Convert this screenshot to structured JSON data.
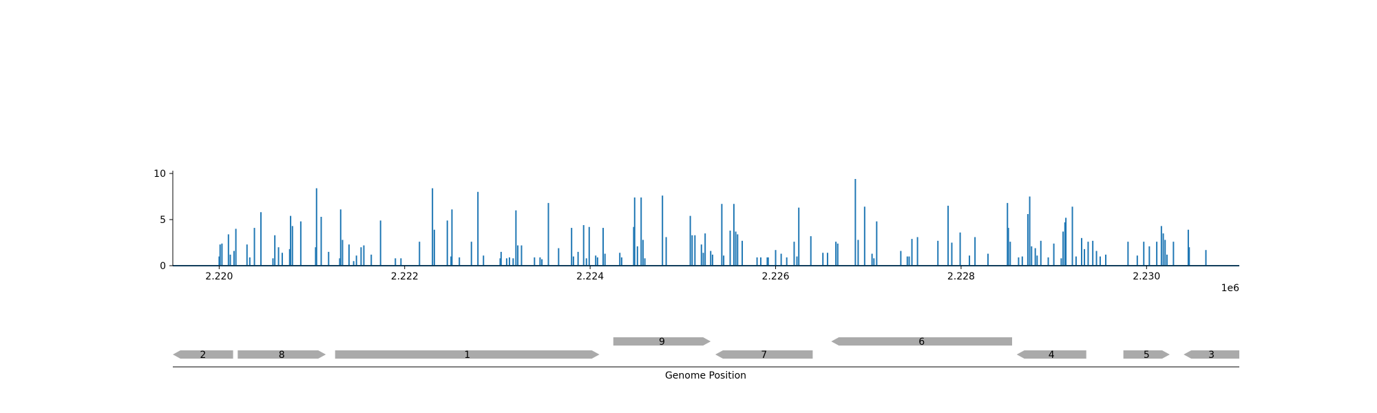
{
  "chart_data": [
    {
      "type": "bar",
      "subtype": "coverage-track",
      "x_multiplier_label": "1e6",
      "xlim": [
        2219500,
        2231000
      ],
      "ylim": [
        0,
        10
      ],
      "x_ticks": [
        2220000,
        2222000,
        2224000,
        2226000,
        2228000,
        2230000
      ],
      "x_tick_labels": [
        "2.220",
        "2.222",
        "2.224",
        "2.226",
        "2.228",
        "2.230"
      ],
      "y_ticks": [
        0,
        5,
        10
      ],
      "y_tick_labels": [
        "0",
        "5",
        "10"
      ],
      "color": "#1f77b4",
      "grid": false,
      "points": [
        [
          2220000,
          1.0
        ],
        [
          2220010,
          2.3
        ],
        [
          2220030,
          2.4
        ],
        [
          2220100,
          3.4
        ],
        [
          2220120,
          1.2
        ],
        [
          2220160,
          1.6
        ],
        [
          2220180,
          4.0
        ],
        [
          2220300,
          2.3
        ],
        [
          2220330,
          0.9
        ],
        [
          2220380,
          4.1
        ],
        [
          2220450,
          5.8
        ],
        [
          2220580,
          0.8
        ],
        [
          2220600,
          3.3
        ],
        [
          2220640,
          2.0
        ],
        [
          2220680,
          1.4
        ],
        [
          2220760,
          1.8
        ],
        [
          2220770,
          5.4
        ],
        [
          2220790,
          4.3
        ],
        [
          2220880,
          4.8
        ],
        [
          2221040,
          2.0
        ],
        [
          2221050,
          8.4
        ],
        [
          2221100,
          5.3
        ],
        [
          2221180,
          1.5
        ],
        [
          2221300,
          0.8
        ],
        [
          2221310,
          6.1
        ],
        [
          2221330,
          2.8
        ],
        [
          2221400,
          2.3
        ],
        [
          2221450,
          0.5
        ],
        [
          2221480,
          1.1
        ],
        [
          2221530,
          2.0
        ],
        [
          2221560,
          2.2
        ],
        [
          2221640,
          1.2
        ],
        [
          2221740,
          4.9
        ],
        [
          2221900,
          0.8
        ],
        [
          2221960,
          0.8
        ],
        [
          2222160,
          2.6
        ],
        [
          2222300,
          8.4
        ],
        [
          2222320,
          3.9
        ],
        [
          2222460,
          4.9
        ],
        [
          2222500,
          1.0
        ],
        [
          2222510,
          6.1
        ],
        [
          2222590,
          0.9
        ],
        [
          2222720,
          2.6
        ],
        [
          2222790,
          8.0
        ],
        [
          2222850,
          1.1
        ],
        [
          2223030,
          0.8
        ],
        [
          2223040,
          1.5
        ],
        [
          2223100,
          0.8
        ],
        [
          2223130,
          0.9
        ],
        [
          2223170,
          0.8
        ],
        [
          2223200,
          6.0
        ],
        [
          2223220,
          2.2
        ],
        [
          2223260,
          2.2
        ],
        [
          2223400,
          0.9
        ],
        [
          2223460,
          0.9
        ],
        [
          2223480,
          0.7
        ],
        [
          2223550,
          6.8
        ],
        [
          2223660,
          1.9
        ],
        [
          2223800,
          4.1
        ],
        [
          2223820,
          1.0
        ],
        [
          2223870,
          1.5
        ],
        [
          2223930,
          4.4
        ],
        [
          2223960,
          0.8
        ],
        [
          2223990,
          4.2
        ],
        [
          2224060,
          1.1
        ],
        [
          2224080,
          0.9
        ],
        [
          2224140,
          4.1
        ],
        [
          2224160,
          1.3
        ],
        [
          2224320,
          1.4
        ],
        [
          2224340,
          0.9
        ],
        [
          2224470,
          4.2
        ],
        [
          2224480,
          7.4
        ],
        [
          2224510,
          2.1
        ],
        [
          2224550,
          7.4
        ],
        [
          2224570,
          2.8
        ],
        [
          2224590,
          0.8
        ],
        [
          2224780,
          7.6
        ],
        [
          2224820,
          3.1
        ],
        [
          2225080,
          5.4
        ],
        [
          2225100,
          3.3
        ],
        [
          2225130,
          3.3
        ],
        [
          2225200,
          2.3
        ],
        [
          2225220,
          1.4
        ],
        [
          2225240,
          3.5
        ],
        [
          2225300,
          1.6
        ],
        [
          2225320,
          1.2
        ],
        [
          2225420,
          6.7
        ],
        [
          2225440,
          1.1
        ],
        [
          2225510,
          3.8
        ],
        [
          2225550,
          6.7
        ],
        [
          2225570,
          3.7
        ],
        [
          2225590,
          3.4
        ],
        [
          2225640,
          2.7
        ],
        [
          2225800,
          0.9
        ],
        [
          2225840,
          0.9
        ],
        [
          2225910,
          0.9
        ],
        [
          2225920,
          0.9
        ],
        [
          2226000,
          1.7
        ],
        [
          2226060,
          1.3
        ],
        [
          2226120,
          0.9
        ],
        [
          2226200,
          2.6
        ],
        [
          2226230,
          1.0
        ],
        [
          2226250,
          6.3
        ],
        [
          2226380,
          3.2
        ],
        [
          2226510,
          1.4
        ],
        [
          2226560,
          1.4
        ],
        [
          2226650,
          2.6
        ],
        [
          2226670,
          2.4
        ],
        [
          2226860,
          9.4
        ],
        [
          2226890,
          2.8
        ],
        [
          2226960,
          6.4
        ],
        [
          2227040,
          1.3
        ],
        [
          2227060,
          0.8
        ],
        [
          2227090,
          4.8
        ],
        [
          2227350,
          1.6
        ],
        [
          2227420,
          1.0
        ],
        [
          2227440,
          1.0
        ],
        [
          2227470,
          2.9
        ],
        [
          2227530,
          3.1
        ],
        [
          2227750,
          2.7
        ],
        [
          2227860,
          6.5
        ],
        [
          2227900,
          2.5
        ],
        [
          2227990,
          3.6
        ],
        [
          2228090,
          1.1
        ],
        [
          2228150,
          3.1
        ],
        [
          2228290,
          1.3
        ],
        [
          2228500,
          6.8
        ],
        [
          2228510,
          4.1
        ],
        [
          2228530,
          2.6
        ],
        [
          2228620,
          0.9
        ],
        [
          2228660,
          1.0
        ],
        [
          2228720,
          5.6
        ],
        [
          2228740,
          7.5
        ],
        [
          2228760,
          2.1
        ],
        [
          2228800,
          1.9
        ],
        [
          2228820,
          1.1
        ],
        [
          2228860,
          2.7
        ],
        [
          2228940,
          0.9
        ],
        [
          2229000,
          2.4
        ],
        [
          2229080,
          0.8
        ],
        [
          2229100,
          3.7
        ],
        [
          2229120,
          4.7
        ],
        [
          2229130,
          5.2
        ],
        [
          2229200,
          6.4
        ],
        [
          2229240,
          1.0
        ],
        [
          2229300,
          3.0
        ],
        [
          2229330,
          1.8
        ],
        [
          2229370,
          2.6
        ],
        [
          2229420,
          2.7
        ],
        [
          2229460,
          1.6
        ],
        [
          2229500,
          1.0
        ],
        [
          2229560,
          1.2
        ],
        [
          2229800,
          2.6
        ],
        [
          2229900,
          1.1
        ],
        [
          2229970,
          2.6
        ],
        [
          2230030,
          2.1
        ],
        [
          2230110,
          2.6
        ],
        [
          2230160,
          4.3
        ],
        [
          2230180,
          3.5
        ],
        [
          2230200,
          2.8
        ],
        [
          2230220,
          1.2
        ],
        [
          2230290,
          2.6
        ],
        [
          2230450,
          3.9
        ],
        [
          2230460,
          2.0
        ],
        [
          2230640,
          1.7
        ]
      ]
    },
    {
      "type": "gene-track",
      "xlabel": "Genome Position",
      "xlim": [
        2219500,
        2231000
      ],
      "color": "#aaaaaa",
      "genes": [
        {
          "label": "2",
          "start": 2219500,
          "end": 2220150,
          "strand": "-",
          "row": 0
        },
        {
          "label": "8",
          "start": 2220200,
          "end": 2221150,
          "strand": "+",
          "row": 0
        },
        {
          "label": "1",
          "start": 2221250,
          "end": 2224100,
          "strand": "+",
          "row": 0
        },
        {
          "label": "9",
          "start": 2224250,
          "end": 2225300,
          "strand": "+",
          "row": 1
        },
        {
          "label": "7",
          "start": 2225350,
          "end": 2226400,
          "strand": "-",
          "row": 0
        },
        {
          "label": "6",
          "start": 2226600,
          "end": 2228550,
          "strand": "-",
          "row": 1
        },
        {
          "label": "4",
          "start": 2228600,
          "end": 2229350,
          "strand": "-",
          "row": 0
        },
        {
          "label": "5",
          "start": 2229750,
          "end": 2230250,
          "strand": "+",
          "row": 0
        },
        {
          "label": "3",
          "start": 2230400,
          "end": 2231000,
          "strand": "-",
          "row": 0
        }
      ]
    }
  ]
}
